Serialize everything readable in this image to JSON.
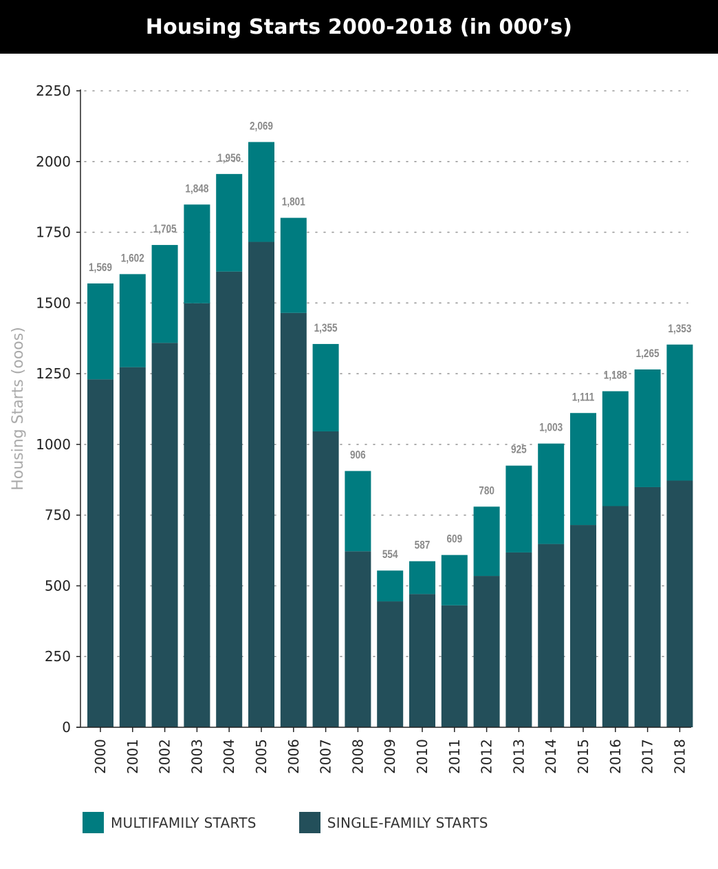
{
  "colors": {
    "multifamily": "#007c80",
    "single_family": "#234f5a",
    "title_bg": "#000000",
    "title_text": "#ffffff",
    "total_label": "#8a8a8a",
    "axis": "#222222",
    "ylabel": "#aaaaaa"
  },
  "chart_data": {
    "type": "bar",
    "stacked": true,
    "title": "Housing Starts 2000-2018 (in 000’s)",
    "ylabel": "Housing Starts (ooos)",
    "xlabel": "",
    "ylim": [
      0,
      2250
    ],
    "yticks": [
      0,
      250,
      500,
      750,
      1000,
      1250,
      1500,
      1750,
      2000,
      2250
    ],
    "ytick_labels": [
      "0",
      "250",
      "500",
      "750",
      "1000",
      "1250",
      "1500",
      "1750",
      "2000",
      "2250"
    ],
    "grid": "horizontal dotted",
    "legend_position": "bottom-left",
    "categories": [
      "2000",
      "2001",
      "2002",
      "2003",
      "2004",
      "2005",
      "2006",
      "2007",
      "2008",
      "2009",
      "2010",
      "2011",
      "2012",
      "2013",
      "2014",
      "2015",
      "2016",
      "2017",
      "2018"
    ],
    "series": [
      {
        "name": "SINGLE-FAMILY STARTS",
        "color": "#234f5a",
        "values": [
          1230,
          1273,
          1359,
          1499,
          1611,
          1716,
          1465,
          1046,
          622,
          445,
          471,
          431,
          535,
          618,
          648,
          715,
          782,
          849,
          872
        ]
      },
      {
        "name": "MULTIFAMILY STARTS",
        "color": "#007c80",
        "values": [
          339,
          329,
          346,
          349,
          345,
          353,
          336,
          309,
          284,
          109,
          116,
          178,
          245,
          307,
          355,
          396,
          406,
          416,
          481
        ]
      }
    ],
    "totals": [
      1569,
      1602,
      1705,
      1848,
      1956,
      2069,
      1801,
      1355,
      906,
      554,
      587,
      609,
      780,
      925,
      1003,
      1111,
      1188,
      1265,
      1353
    ],
    "total_labels": [
      "1,569",
      "1,602",
      "1,705",
      "1,848",
      "1,956",
      "2,069",
      "1,801",
      "1,355",
      "906",
      "554",
      "587",
      "609",
      "780",
      "925",
      "1,003",
      "1,111",
      "1,188",
      "1,265",
      "1,353"
    ]
  },
  "legend": {
    "items": [
      {
        "label": "MULTIFAMILY STARTS",
        "color": "#007c80"
      },
      {
        "label": "SINGLE-FAMILY STARTS",
        "color": "#234f5a"
      }
    ]
  }
}
